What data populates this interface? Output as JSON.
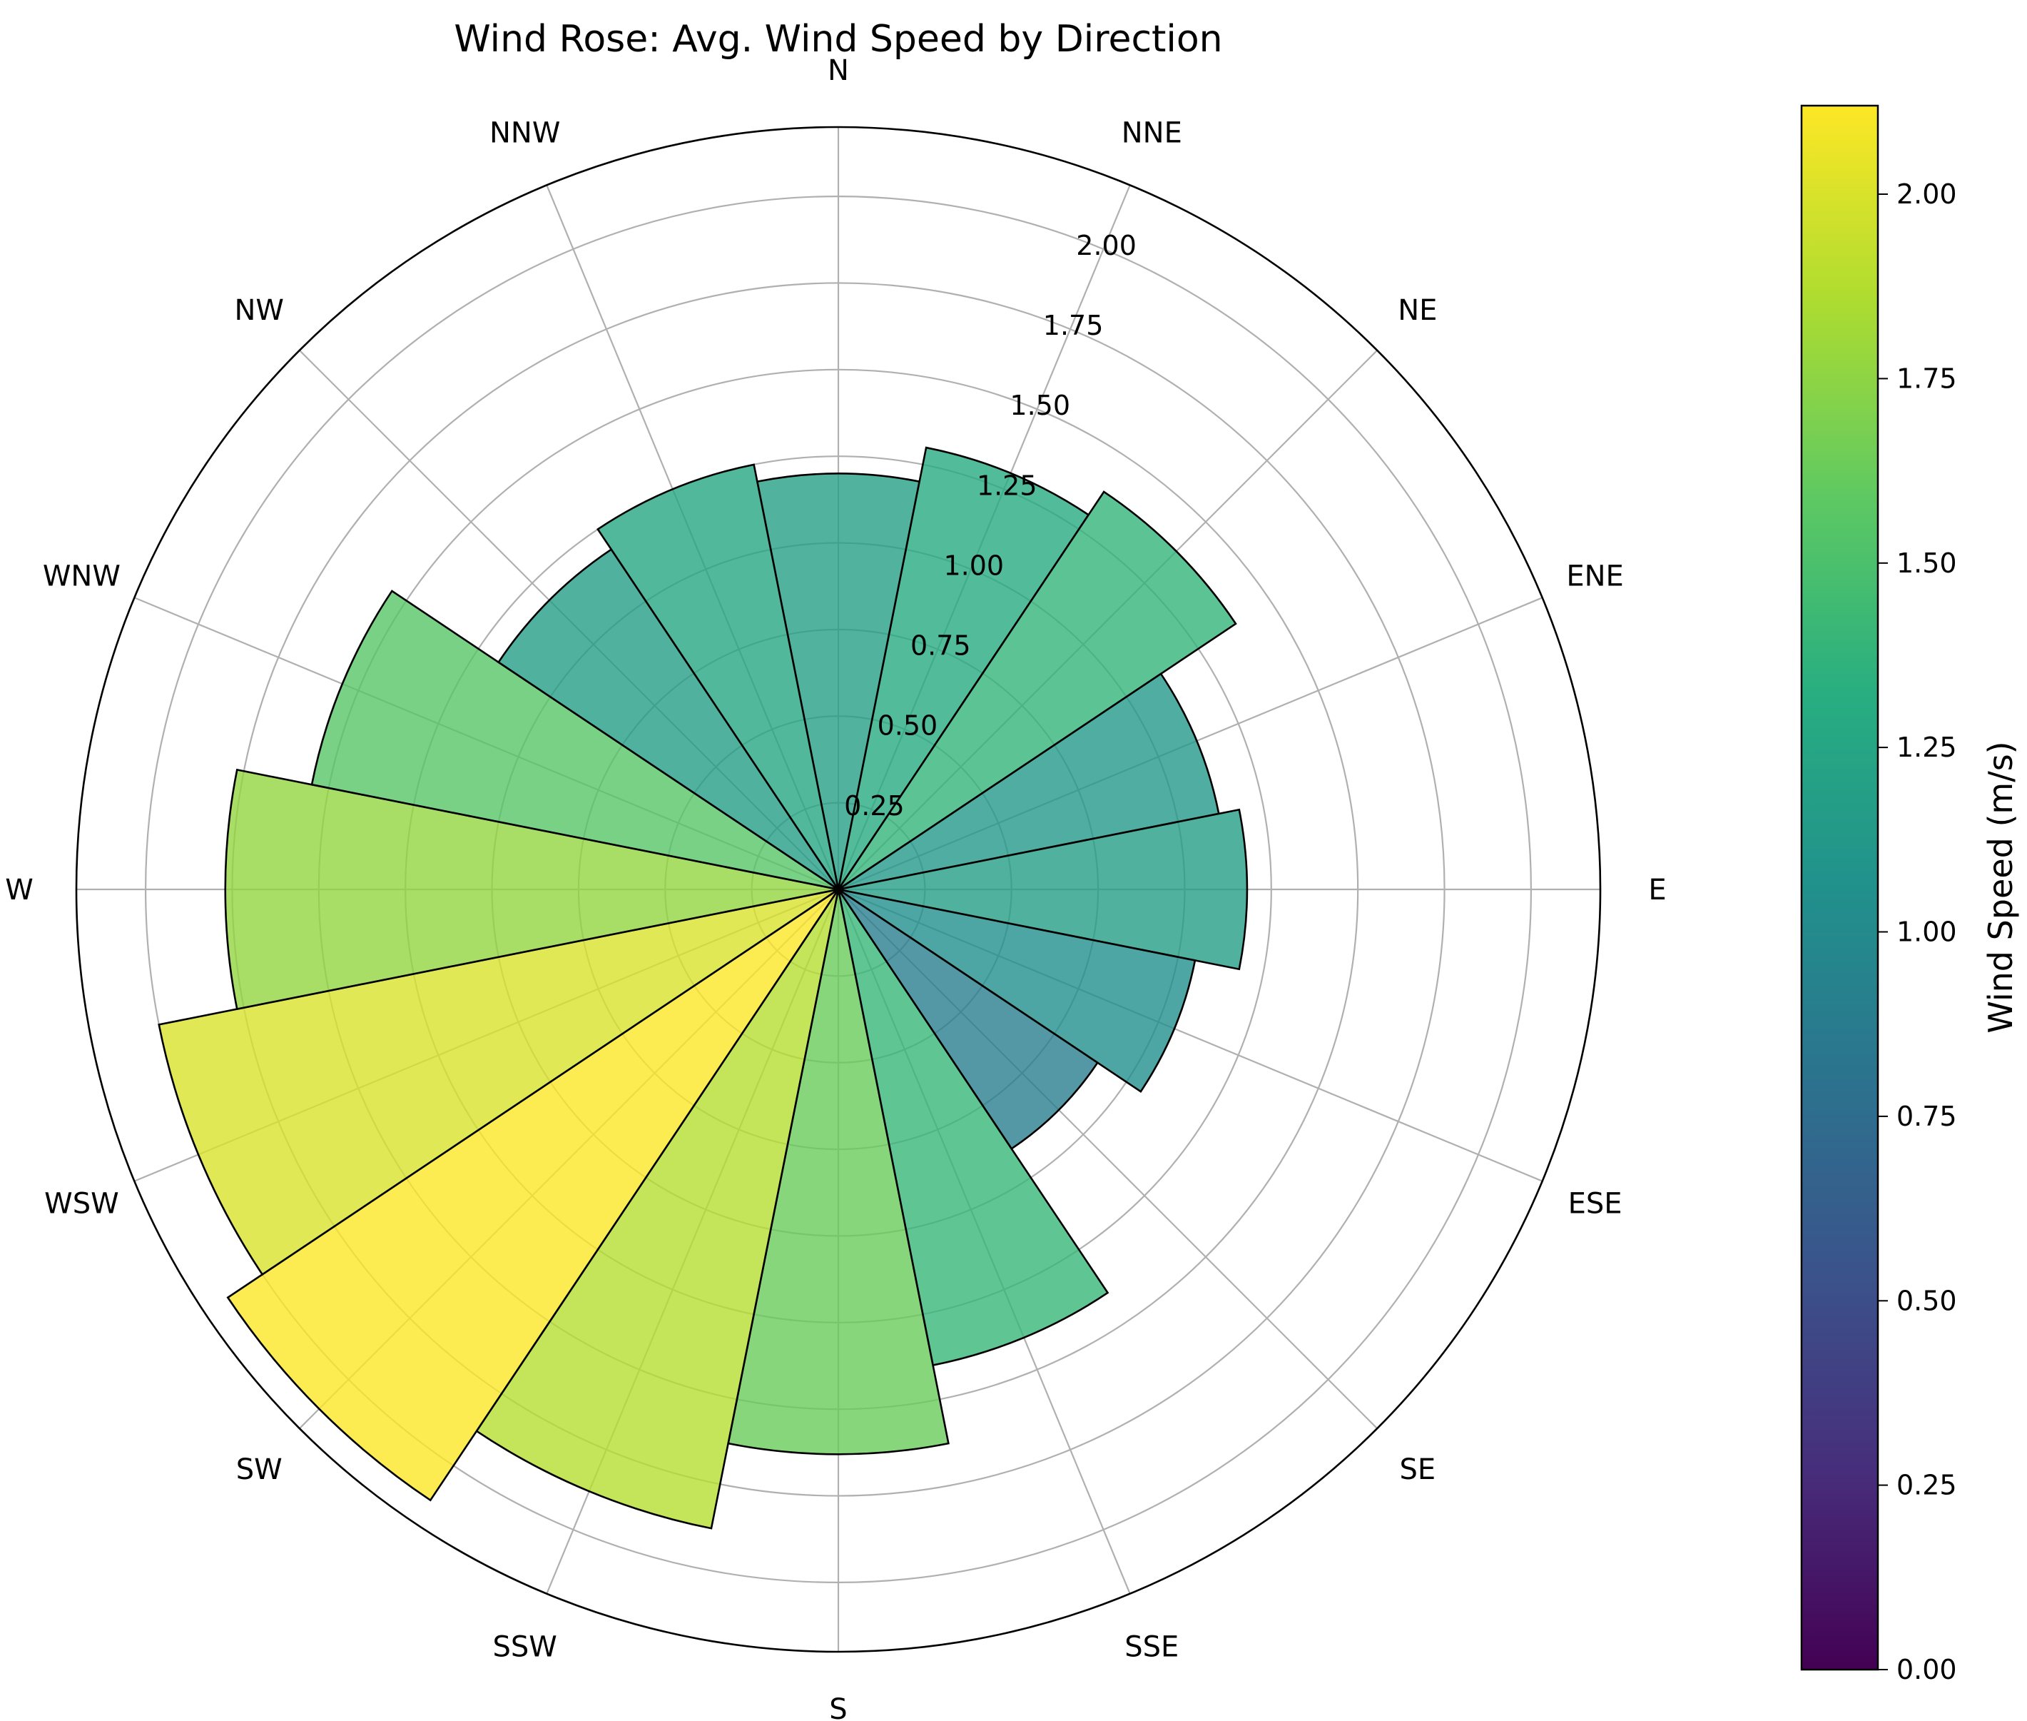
{
  "chart_data": {
    "type": "polar-bar",
    "title": "Wind Rose: Avg. Wind Speed by Direction",
    "directions": [
      "N",
      "NNE",
      "NE",
      "ENE",
      "E",
      "ESE",
      "SE",
      "SSE",
      "S",
      "SSW",
      "SW",
      "WSW",
      "W",
      "WNW",
      "NW",
      "NNW"
    ],
    "values": [
      1.2,
      1.3,
      1.38,
      1.12,
      1.18,
      1.05,
      0.9,
      1.4,
      1.63,
      1.88,
      2.12,
      2.0,
      1.77,
      1.55,
      1.18,
      1.25
    ],
    "radial_ticks": [
      "0.25",
      "0.50",
      "0.75",
      "1.00",
      "1.25",
      "1.50",
      "1.75",
      "2.00"
    ],
    "radial_tick_values": [
      0.25,
      0.5,
      0.75,
      1.0,
      1.25,
      1.5,
      1.75,
      2.0
    ],
    "rmax": 2.2,
    "grid": true,
    "colormap": "viridis",
    "colorbar": {
      "label": "Wind Speed (m/s)",
      "ticks": [
        "0.00",
        "0.25",
        "0.50",
        "0.75",
        "1.00",
        "1.25",
        "1.50",
        "1.75",
        "2.00"
      ],
      "tick_values": [
        0,
        0.25,
        0.5,
        0.75,
        1.0,
        1.25,
        1.5,
        1.75,
        2.0
      ],
      "vmin": 0,
      "vmax": 2.12
    }
  }
}
